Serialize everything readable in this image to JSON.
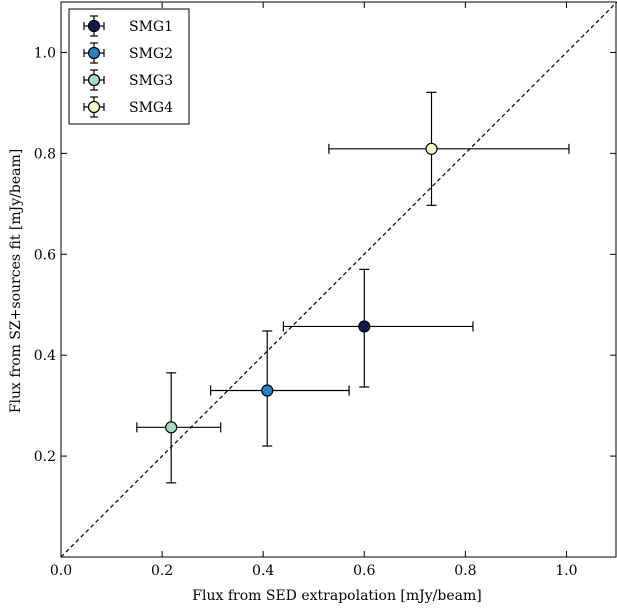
{
  "chart_data": {
    "type": "scatter",
    "title": "",
    "xlabel": "Flux from SED extrapolation [mJy/beam]",
    "ylabel": "Flux from SZ+sources fit [mJy/beam]",
    "xlim": [
      0.0,
      1.1
    ],
    "ylim": [
      0.0,
      1.1
    ],
    "x_ticks": [
      0.0,
      0.2,
      0.4,
      0.6,
      0.8,
      1.0
    ],
    "x_tick_labels": [
      "0.0",
      "0.2",
      "0.4",
      "0.6",
      "0.8",
      "1.0"
    ],
    "y_ticks": [
      0.2,
      0.4,
      0.6,
      0.8,
      1.0
    ],
    "y_tick_labels": [
      "0.2",
      "0.4",
      "0.6",
      "0.8",
      "1.0"
    ],
    "grid": false,
    "legend_position": "top-left",
    "reference_line": {
      "style": "dashed",
      "relation": "y = x"
    },
    "series": [
      {
        "name": "SMG1",
        "color": "#0e1a4b",
        "x": 0.6,
        "x_err_low": 0.16,
        "x_err_high": 0.215,
        "y": 0.457,
        "y_err_low": 0.12,
        "y_err_high": 0.113
      },
      {
        "name": "SMG2",
        "color": "#2a82c0",
        "x": 0.408,
        "x_err_low": 0.112,
        "x_err_high": 0.162,
        "y": 0.33,
        "y_err_low": 0.11,
        "y_err_high": 0.118
      },
      {
        "name": "SMG3",
        "color": "#a6dcc0",
        "x": 0.218,
        "x_err_low": 0.068,
        "x_err_high": 0.098,
        "y": 0.257,
        "y_err_low": 0.11,
        "y_err_high": 0.108
      },
      {
        "name": "SMG4",
        "color": "#fbfbd2",
        "x": 0.733,
        "x_err_low": 0.203,
        "x_err_high": 0.272,
        "y": 0.809,
        "y_err_low": 0.112,
        "y_err_high": 0.112
      }
    ]
  }
}
